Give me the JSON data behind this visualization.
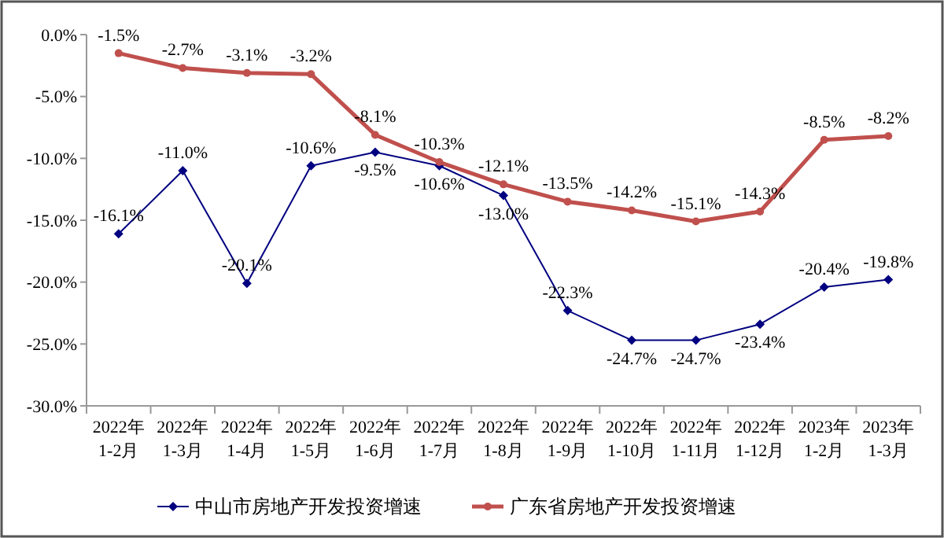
{
  "chart_data": {
    "type": "line",
    "categories": [
      "2022年\n1-2月",
      "2022年\n1-3月",
      "2022年\n1-4月",
      "2022年\n1-5月",
      "2022年\n1-6月",
      "2022年\n1-7月",
      "2022年\n1-8月",
      "2022年\n1-9月",
      "2022年\n1-10月",
      "2022年\n1-11月",
      "2022年\n1-12月",
      "2023年\n1-2月",
      "2023年\n1-3月"
    ],
    "series": [
      {
        "name": "中山市房地产开发投资增速",
        "color": "#000080",
        "marker": "diamond",
        "values": [
          -16.1,
          -11.0,
          -20.1,
          -10.6,
          -9.5,
          -10.6,
          -13.0,
          -22.3,
          -24.7,
          -24.7,
          -23.4,
          -20.4,
          -19.8
        ],
        "value_labels": [
          "-16.1%",
          "-11.0%",
          "-20.1%",
          "-10.6%",
          "-9.5%",
          "-10.6%",
          "-13.0%",
          "-22.3%",
          "-24.7%",
          "-24.7%",
          "-23.4%",
          "-20.4%",
          "-19.8%"
        ]
      },
      {
        "name": "广东省房地产开发投资增速",
        "color": "#c0504d",
        "marker": "circle",
        "values": [
          -1.5,
          -2.7,
          -3.1,
          -3.2,
          -8.1,
          -10.3,
          -12.1,
          -13.5,
          -14.2,
          -15.1,
          -14.3,
          -8.5,
          -8.2
        ],
        "value_labels": [
          "-1.5%",
          "-2.7%",
          "-3.1%",
          "-3.2%",
          "-8.1%",
          "-10.3%",
          "-12.1%",
          "-13.5%",
          "-14.2%",
          "-15.1%",
          "-14.3%",
          "-8.5%",
          "-8.2%"
        ]
      }
    ],
    "ylim": [
      -30,
      0
    ],
    "yticks": [
      {
        "value": 0,
        "label": "0.0%"
      },
      {
        "value": -5,
        "label": "-5.0%"
      },
      {
        "value": -10,
        "label": "-10.0%"
      },
      {
        "value": -15,
        "label": "-15.0%"
      },
      {
        "value": -20,
        "label": "-20.0%"
      },
      {
        "value": -25,
        "label": "-25.0%"
      },
      {
        "value": -30,
        "label": "-30.0%"
      }
    ],
    "grid": false,
    "legend": "bottom"
  }
}
